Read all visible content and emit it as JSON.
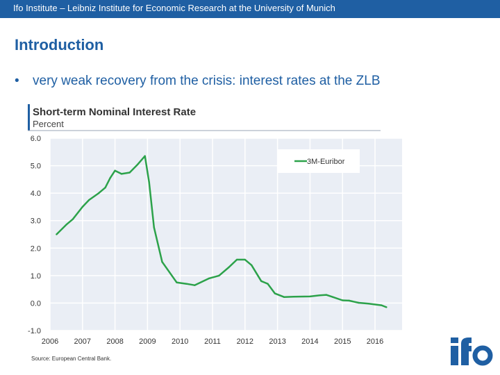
{
  "header": {
    "text": "Ifo Institute – Leibniz Institute for Economic Research at the University of Munich"
  },
  "slide": {
    "title": "Introduction",
    "bullet": "very weak recovery from the crisis: interest rates at the ZLB"
  },
  "colors": {
    "header_bg": "#1f5fa3",
    "accent": "#1f5fa3",
    "series": "#2ca24a",
    "plot_bg": "#eaeef5"
  },
  "logo": {
    "text": "ifo"
  },
  "chart_data": {
    "type": "line",
    "title": "Short-term Nominal Interest Rate",
    "subtitle": "Percent",
    "xlabel": "",
    "ylabel": "",
    "ylim": [
      -1.0,
      6.0
    ],
    "xlim": [
      2006,
      2016.833
    ],
    "yticks": [
      "6.0",
      "5.0",
      "4.0",
      "3.0",
      "2.0",
      "1.0",
      "0.0",
      "-1.0"
    ],
    "xticks": [
      "2006",
      "2007",
      "2008",
      "2009",
      "2010",
      "2011",
      "2012",
      "2013",
      "2014",
      "2015",
      "2016"
    ],
    "grid": true,
    "legend": "top-right",
    "series": [
      {
        "name": "3M-Euribor",
        "x": [
          2006.2,
          2006.5,
          2006.7,
          2007.0,
          2007.2,
          2007.5,
          2007.7,
          2007.85,
          2008.0,
          2008.2,
          2008.45,
          2008.7,
          2008.92,
          2009.05,
          2009.2,
          2009.45,
          2009.9,
          2010.2,
          2010.45,
          2010.9,
          2011.2,
          2011.5,
          2011.75,
          2012.0,
          2012.2,
          2012.5,
          2012.7,
          2012.92,
          2013.2,
          2013.5,
          2014.0,
          2014.3,
          2014.5,
          2014.7,
          2015.0,
          2015.2,
          2015.5,
          2015.8,
          2016.2,
          2016.35
        ],
        "values": [
          2.5,
          2.85,
          3.05,
          3.5,
          3.75,
          4.0,
          4.2,
          4.55,
          4.82,
          4.7,
          4.75,
          5.05,
          5.35,
          4.4,
          2.75,
          1.5,
          0.75,
          0.7,
          0.65,
          0.9,
          1.0,
          1.3,
          1.58,
          1.58,
          1.38,
          0.8,
          0.7,
          0.35,
          0.22,
          0.23,
          0.24,
          0.28,
          0.3,
          0.22,
          0.1,
          0.09,
          0.01,
          -0.02,
          -0.08,
          -0.15
        ]
      }
    ],
    "source": "Source: European Central Bank."
  }
}
